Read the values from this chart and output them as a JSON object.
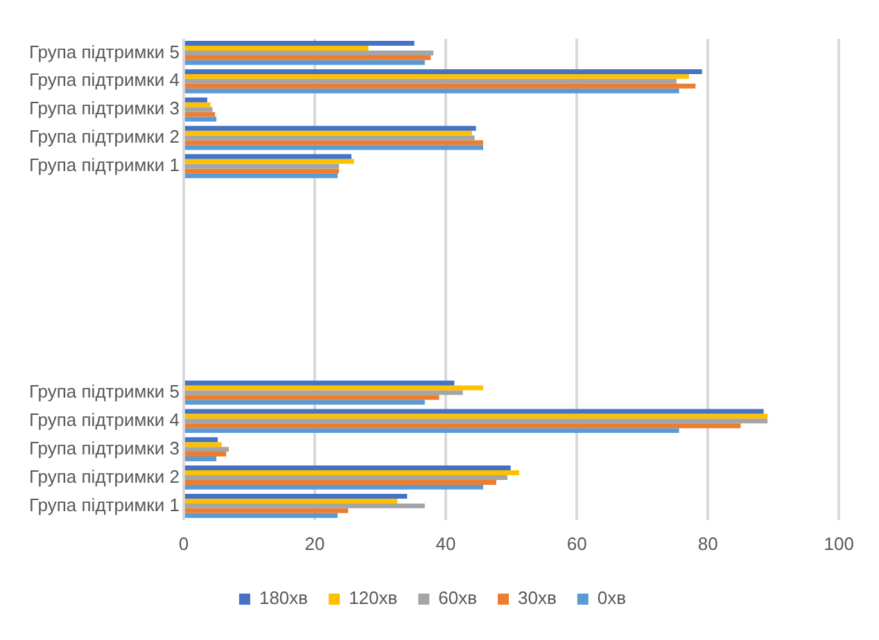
{
  "chart_data": {
    "type": "bar",
    "orientation": "horizontal",
    "categories": [
      "Група підтримки 5",
      "Група підтримки 4",
      "Група підтримки 3",
      "Група підтримки 2",
      "Група підтримки 1",
      null,
      null,
      null,
      null,
      null,
      null,
      null,
      "Група підтримки 5",
      "Група підтримки 4",
      "Група підтримки 3",
      "Група підтримки 2",
      "Група підтримки 1"
    ],
    "series": [
      {
        "name": "180хв",
        "color": "#4472c4",
        "values": [
          35.2,
          79.1,
          3.6,
          44.6,
          25.6,
          null,
          null,
          null,
          null,
          null,
          null,
          null,
          41.3,
          88.5,
          5.2,
          49.9,
          34.1
        ]
      },
      {
        "name": "120хв",
        "color": "#ffc000",
        "values": [
          28.2,
          77.1,
          4.1,
          44.0,
          26.0,
          null,
          null,
          null,
          null,
          null,
          null,
          null,
          45.7,
          89.1,
          5.8,
          51.2,
          32.6
        ]
      },
      {
        "name": "60хв",
        "color": "#a5a5a5",
        "values": [
          38.1,
          75.2,
          4.4,
          44.4,
          23.7,
          null,
          null,
          null,
          null,
          null,
          null,
          null,
          42.6,
          89.1,
          6.9,
          49.4,
          36.8
        ]
      },
      {
        "name": "30хв",
        "color": "#ed7d31",
        "values": [
          37.7,
          78.1,
          4.8,
          45.7,
          23.7,
          null,
          null,
          null,
          null,
          null,
          null,
          null,
          39.0,
          85.0,
          6.5,
          47.7,
          25.1
        ]
      },
      {
        "name": "0хв",
        "color": "#5b9bd5",
        "values": [
          36.8,
          75.6,
          5.0,
          45.7,
          23.5,
          null,
          null,
          null,
          null,
          null,
          null,
          null,
          36.8,
          75.6,
          5.0,
          45.7,
          23.5
        ]
      }
    ],
    "xlim": [
      0,
      100
    ],
    "xticks": [
      0,
      20,
      40,
      60,
      80,
      100
    ],
    "grid": "x",
    "legend": "bottom"
  }
}
